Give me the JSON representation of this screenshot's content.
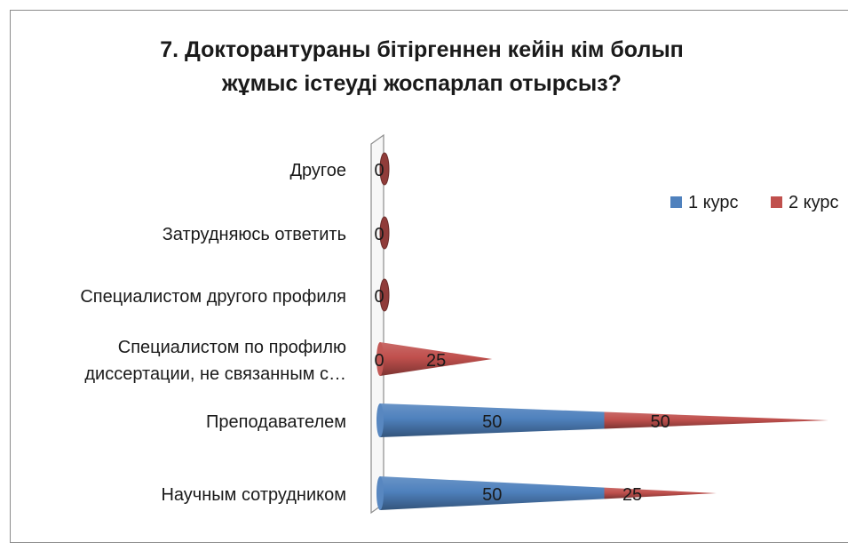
{
  "chart_data": {
    "type": "bar",
    "orientation": "horizontal",
    "stacked": true,
    "style": "3d-cone",
    "title": "7. Докторантураны бітіргеннен кейін кім болып жұмыс істеуді жоспарлап отырсыз?",
    "title_lines": [
      "7. Докторантураны бітіргеннен кейін кім болып",
      "жұмыс істеуді жоспарлап отырсыз?"
    ],
    "categories": [
      "Научным сотрудником",
      "Преподавателем",
      "Специалистом по профилю диссертации, не связанным с…",
      "Специалистом другого профиля",
      "Затрудняюсь ответить",
      "Другое"
    ],
    "category_label_lines": [
      [
        "Научным сотрудником"
      ],
      [
        "Преподавателем"
      ],
      [
        "Специалистом по профилю",
        "диссертации, не связанным с…"
      ],
      [
        "Специалистом другого профиля"
      ],
      [
        "Затрудняюсь ответить"
      ],
      [
        "Другое"
      ]
    ],
    "series": [
      {
        "name": "1 курс",
        "color": "#4f81bd",
        "values": [
          50,
          50,
          0,
          null,
          null,
          null
        ]
      },
      {
        "name": "2 курс",
        "color": "#c0504d",
        "values": [
          25,
          50,
          25,
          0,
          0,
          0
        ]
      }
    ],
    "legend_position": "right",
    "legend_display": [
      "1 курс",
      "2 курс"
    ],
    "xlim": [
      0,
      100
    ],
    "grid": false
  }
}
